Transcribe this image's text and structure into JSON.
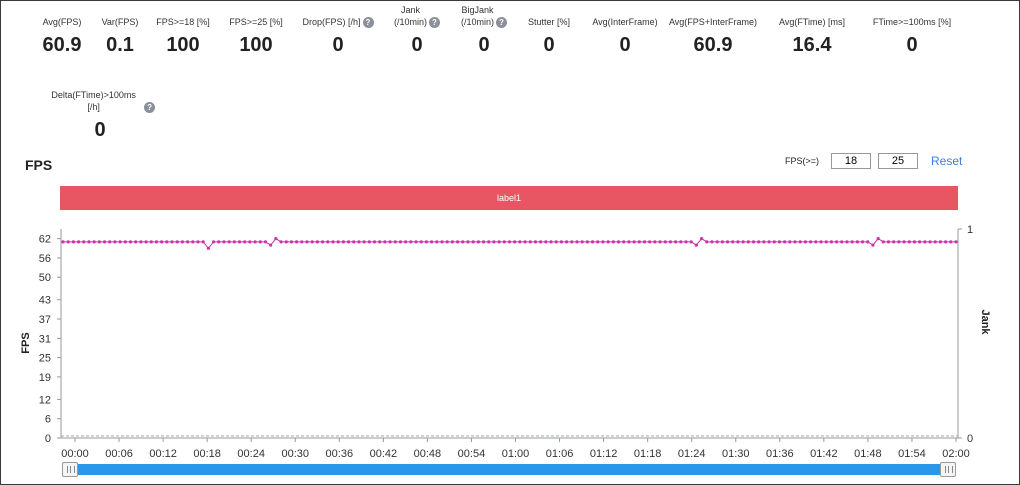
{
  "metrics": [
    {
      "label": "Avg(FPS)",
      "value": "60.9",
      "help": false
    },
    {
      "label": "Var(FPS)",
      "value": "0.1",
      "help": false
    },
    {
      "label": "FPS>=18 [%]",
      "value": "100",
      "help": false
    },
    {
      "label": "FPS>=25 [%]",
      "value": "100",
      "help": false
    },
    {
      "label": "Drop(FPS) [/h]",
      "value": "0",
      "help": true
    },
    {
      "label": "Jank\n(/10min)",
      "value": "0",
      "help": true
    },
    {
      "label": "BigJank\n(/10min)",
      "value": "0",
      "help": true
    },
    {
      "label": "Stutter [%]",
      "value": "0",
      "help": false
    },
    {
      "label": "Avg(InterFrame)",
      "value": "0",
      "help": false
    },
    {
      "label": "Avg(FPS+InterFrame)",
      "value": "60.9",
      "help": false
    },
    {
      "label": "Avg(FTime) [ms]",
      "value": "16.4",
      "help": false
    },
    {
      "label": "FTime>=100ms [%]",
      "value": "0",
      "help": false
    },
    {
      "label": "Delta(FTime)>100ms [/h]",
      "value": "0",
      "help": true
    }
  ],
  "help_icon_glyph": "?",
  "chart_section": {
    "title": "FPS",
    "fps_threshold_label": "FPS(>=)",
    "threshold_low": "18",
    "threshold_high": "25",
    "reset_label": "Reset",
    "label_bar_text": "label1",
    "label_bar_color": "#e85563"
  },
  "chart_data": {
    "type": "line",
    "ylabel": "FPS",
    "y2label": "Jank",
    "yticks": [
      "0",
      "6",
      "12",
      "19",
      "25",
      "31",
      "37",
      "43",
      "50",
      "56",
      "62"
    ],
    "y2ticks": [
      "0",
      "1"
    ],
    "ylim": [
      0,
      65
    ],
    "xticks": [
      "00:00",
      "00:06",
      "00:12",
      "00:18",
      "00:24",
      "00:30",
      "00:36",
      "00:42",
      "00:48",
      "00:54",
      "01:00",
      "01:06",
      "01:12",
      "01:18",
      "01:24",
      "01:30",
      "01:36",
      "01:42",
      "01:48",
      "01:54",
      "02:00"
    ],
    "x_range_seconds": [
      0,
      120
    ],
    "series": [
      {
        "color": "#cc33aa",
        "values": [
          61,
          61,
          61,
          61,
          61,
          61,
          61,
          61,
          61,
          61,
          61,
          61,
          61,
          61,
          61,
          61,
          61,
          61,
          61,
          61,
          61,
          61,
          61,
          61,
          61,
          61,
          61,
          61,
          59,
          61,
          61,
          61,
          61,
          61,
          61,
          61,
          61,
          61,
          61,
          61,
          60,
          62,
          61,
          61,
          61,
          61,
          61,
          61,
          61,
          61,
          61,
          61,
          61,
          61,
          61,
          61,
          61,
          61,
          61,
          61,
          61,
          61,
          61,
          61,
          61,
          61,
          61,
          61,
          61,
          61,
          61,
          61,
          61,
          61,
          61,
          61,
          61,
          61,
          61,
          61,
          61,
          61,
          61,
          61,
          61,
          61,
          61,
          61,
          61,
          61,
          61,
          61,
          61,
          61,
          61,
          61,
          61,
          61,
          61,
          61,
          61,
          61,
          61,
          61,
          61,
          61,
          61,
          61,
          61,
          61,
          61,
          61,
          61,
          61,
          61,
          61,
          61,
          61,
          61,
          61,
          61,
          61,
          60,
          62,
          61,
          61,
          61,
          61,
          61,
          61,
          61,
          61,
          61,
          61,
          61,
          61,
          61,
          61,
          61,
          61,
          61,
          61,
          61,
          61,
          61,
          61,
          61,
          61,
          61,
          61,
          61,
          61,
          61,
          61,
          61,
          61,
          60,
          62,
          61,
          61,
          61,
          61,
          61,
          61,
          61,
          61,
          61,
          61,
          61,
          61,
          61,
          61,
          61
        ]
      }
    ],
    "grid": false
  }
}
